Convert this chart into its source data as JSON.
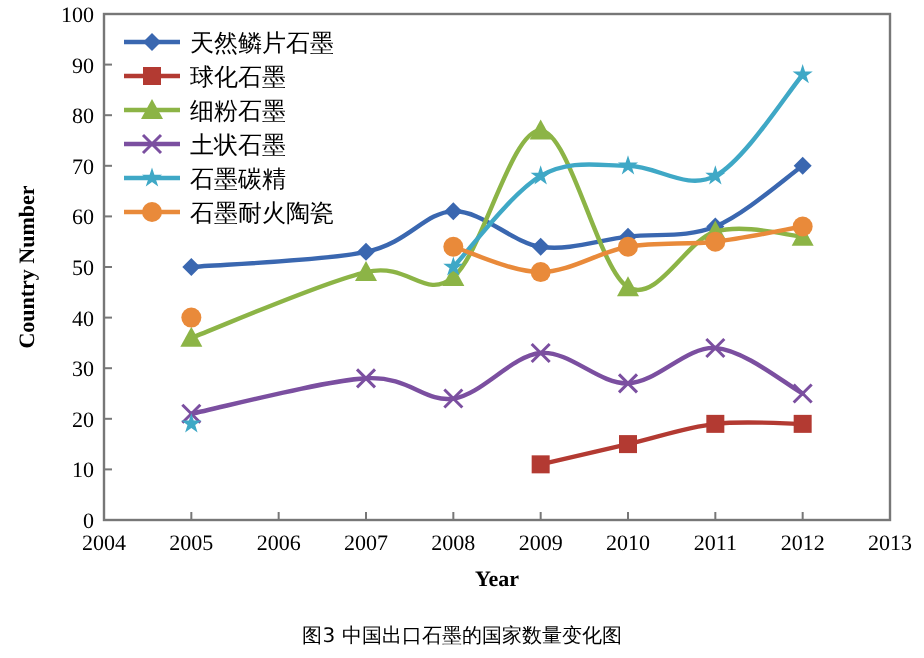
{
  "chart_data": {
    "type": "line",
    "title": "图3 中国出口石墨的国家数量变化图",
    "xlabel": "Year",
    "ylabel": "Country Number",
    "x": [
      2005,
      2007,
      2008,
      2009,
      2010,
      2011,
      2012
    ],
    "xlim": [
      2004,
      2013
    ],
    "xticks": [
      2004,
      2005,
      2006,
      2007,
      2008,
      2009,
      2010,
      2011,
      2012,
      2013
    ],
    "ylim": [
      0,
      100
    ],
    "yticks": [
      0,
      10,
      20,
      30,
      40,
      50,
      60,
      70,
      80,
      90,
      100
    ],
    "grid": false,
    "legend": "top left",
    "line_style": "solid",
    "series": [
      {
        "name": "天然鳞片石墨",
        "color": "#3a67b0",
        "marker": "diamond",
        "values": [
          50,
          53,
          61,
          54,
          56,
          58,
          70
        ]
      },
      {
        "name": "球化石墨",
        "color": "#b33a32",
        "marker": "square",
        "values": [
          null,
          null,
          null,
          11,
          15,
          19,
          19
        ]
      },
      {
        "name": "细粉石墨",
        "color": "#8cb446",
        "marker": "triangle",
        "values": [
          36,
          49,
          48,
          77,
          46,
          57,
          56
        ]
      },
      {
        "name": "土状石墨",
        "color": "#7b4fa0",
        "marker": "cross",
        "values": [
          21,
          28,
          24,
          33,
          27,
          34,
          25
        ]
      },
      {
        "name": "石墨碳精",
        "color": "#3fa8c6",
        "marker": "star",
        "values": [
          19,
          null,
          50,
          68,
          70,
          68,
          88
        ]
      },
      {
        "name": "石墨耐火陶瓷",
        "color": "#e98a3a",
        "marker": "circle",
        "values": [
          40,
          null,
          54,
          49,
          54,
          55,
          58
        ]
      }
    ]
  }
}
